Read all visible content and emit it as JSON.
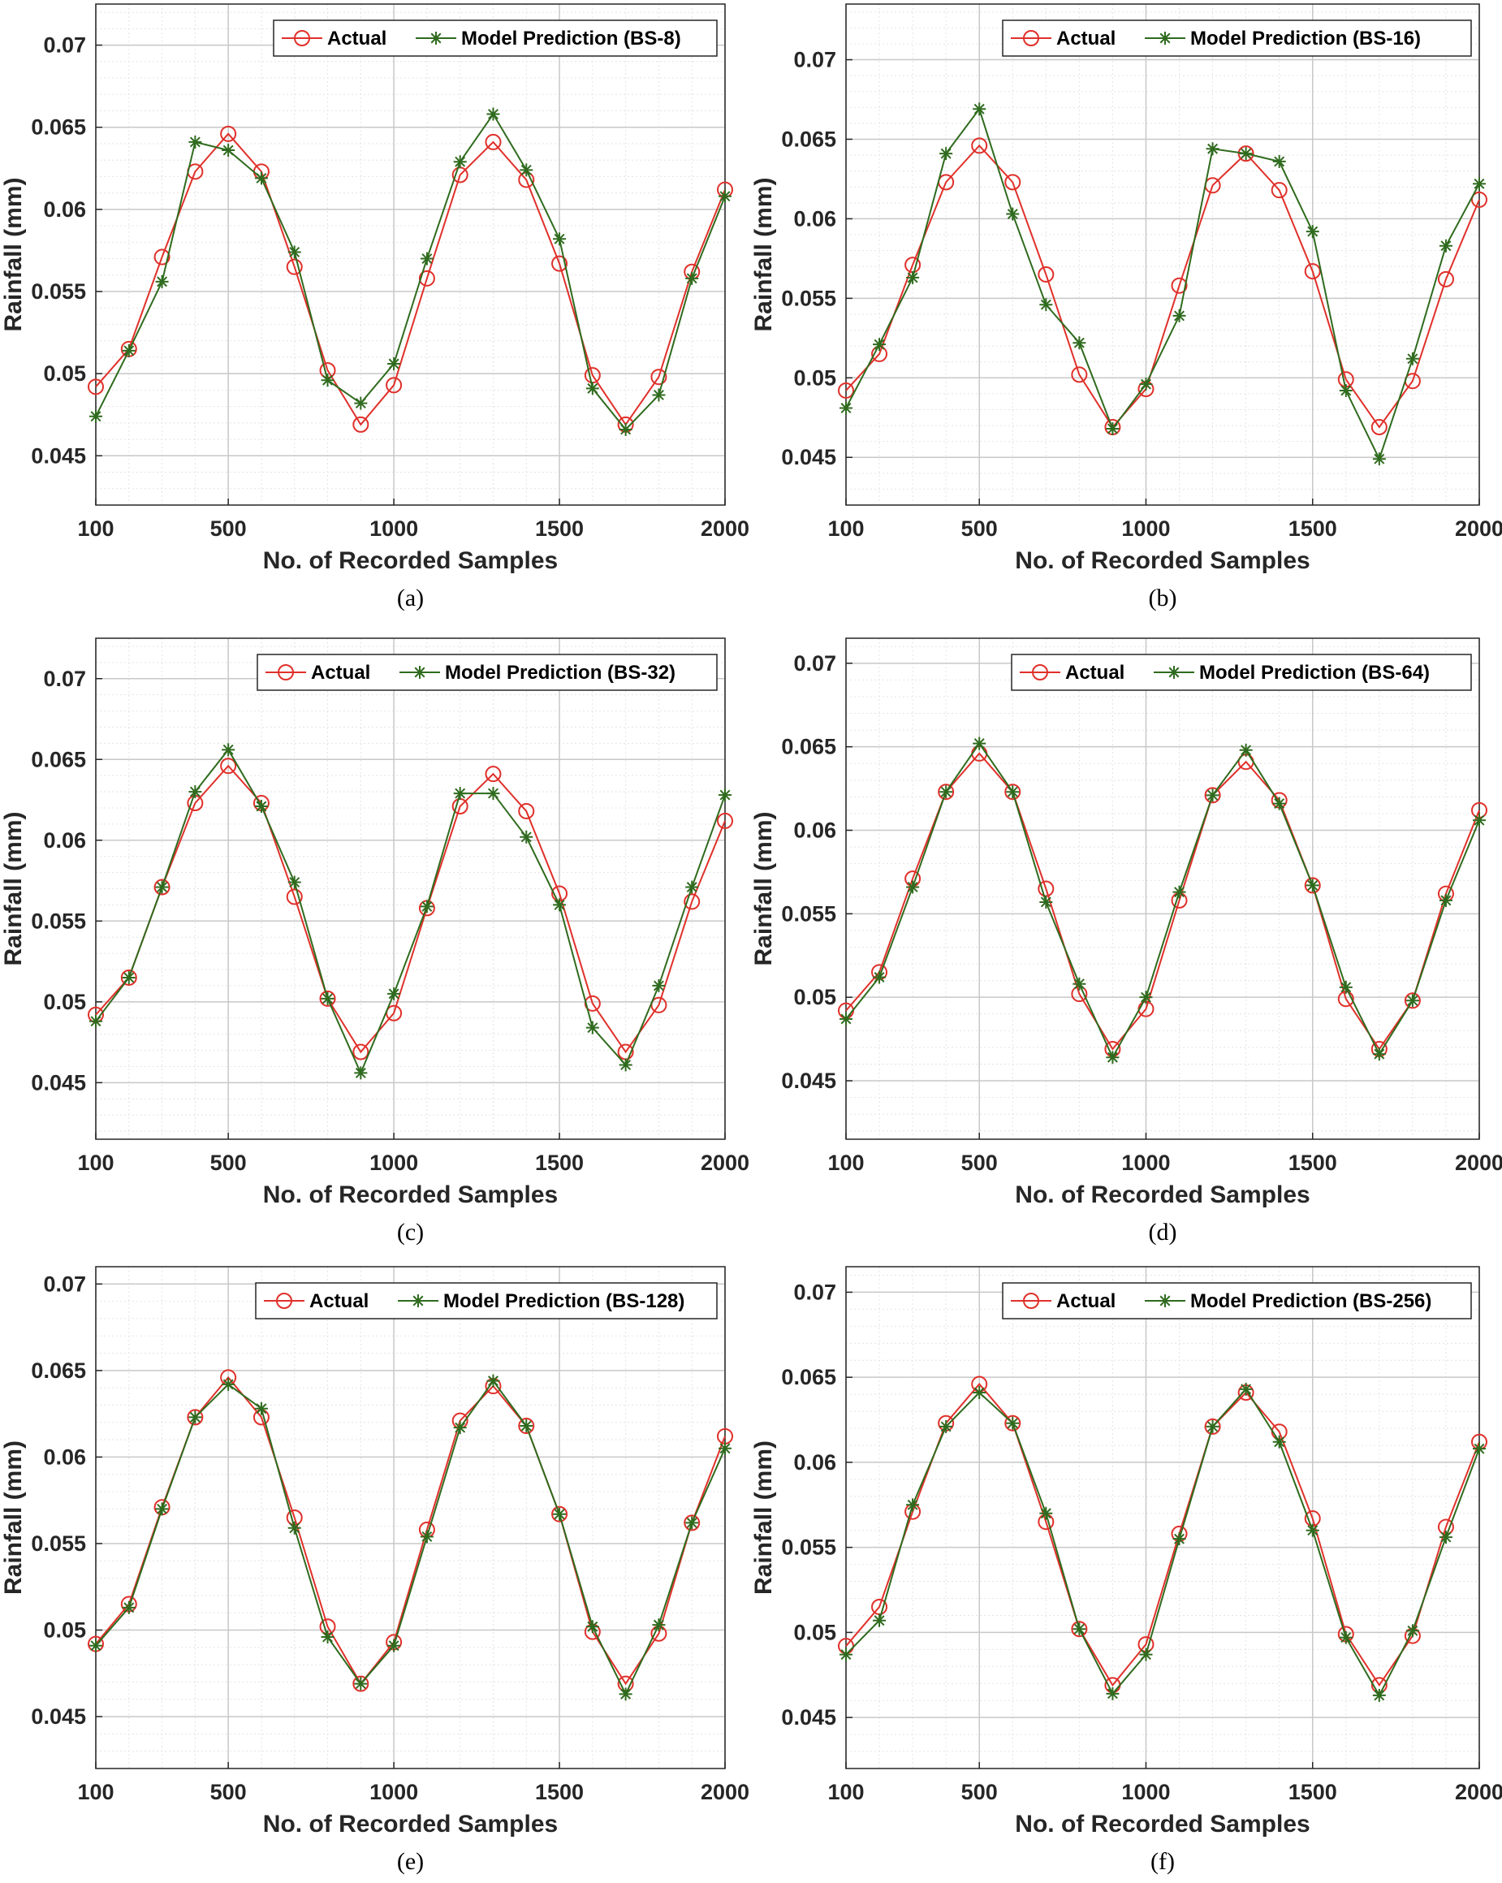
{
  "colors": {
    "actual": "#e0302a",
    "prediction": "#2f6b1e",
    "grid_major": "#c8c8c8",
    "grid_minor": "#e4e4e4",
    "axes": "#262626"
  },
  "chart_data": [
    {
      "type": "line",
      "caption": "(a)",
      "xlabel": "No. of Recorded Samples",
      "ylabel": "Rainfall (mm)",
      "xlim": [
        100,
        2000
      ],
      "ylim": [
        0.042,
        0.0725
      ],
      "xticks": [
        100,
        500,
        1000,
        1500,
        2000
      ],
      "xtick_labels": [
        "100",
        "500",
        "1000",
        "1500",
        "2000"
      ],
      "yticks": [
        0.045,
        0.05,
        0.055,
        0.06,
        0.065,
        0.07
      ],
      "ytick_labels": [
        "0.045",
        "0.05",
        "0.055",
        "0.06",
        "0.065",
        "0.07"
      ],
      "grid": true,
      "legend_position": "top-right",
      "x": [
        100,
        200,
        300,
        400,
        500,
        600,
        700,
        800,
        900,
        1000,
        1100,
        1200,
        1300,
        1400,
        1500,
        1600,
        1700,
        1800,
        1900,
        2000
      ],
      "series": [
        {
          "name": "Actual",
          "marker": "circle",
          "values": [
            0.0492,
            0.0515,
            0.0571,
            0.0623,
            0.0646,
            0.0623,
            0.0565,
            0.0502,
            0.0469,
            0.0493,
            0.0558,
            0.0621,
            0.0641,
            0.0618,
            0.0567,
            0.0499,
            0.0469,
            0.0498,
            0.0562,
            0.0612
          ]
        },
        {
          "name": "Model Prediction (BS-8)",
          "marker": "star",
          "values": [
            0.0474,
            0.0514,
            0.0556,
            0.0641,
            0.0636,
            0.0619,
            0.0574,
            0.0496,
            0.0482,
            0.0506,
            0.057,
            0.0629,
            0.0658,
            0.0624,
            0.0582,
            0.0491,
            0.0466,
            0.0487,
            0.0558,
            0.0608
          ]
        }
      ]
    },
    {
      "type": "line",
      "caption": "(b)",
      "xlabel": "No. of Recorded Samples",
      "ylabel": "Rainfall (mm)",
      "xlim": [
        100,
        2000
      ],
      "ylim": [
        0.042,
        0.0735
      ],
      "xticks": [
        100,
        500,
        1000,
        1500,
        2000
      ],
      "xtick_labels": [
        "100",
        "500",
        "1000",
        "1500",
        "2000"
      ],
      "yticks": [
        0.045,
        0.05,
        0.055,
        0.06,
        0.065,
        0.07
      ],
      "ytick_labels": [
        "0.045",
        "0.05",
        "0.055",
        "0.06",
        "0.065",
        "0.07"
      ],
      "grid": true,
      "legend_position": "top-right",
      "x": [
        100,
        200,
        300,
        400,
        500,
        600,
        700,
        800,
        900,
        1000,
        1100,
        1200,
        1300,
        1400,
        1500,
        1600,
        1700,
        1800,
        1900,
        2000
      ],
      "series": [
        {
          "name": "Actual",
          "marker": "circle",
          "values": [
            0.0492,
            0.0515,
            0.0571,
            0.0623,
            0.0646,
            0.0623,
            0.0565,
            0.0502,
            0.0469,
            0.0493,
            0.0558,
            0.0621,
            0.0641,
            0.0618,
            0.0567,
            0.0499,
            0.0469,
            0.0498,
            0.0562,
            0.0612
          ]
        },
        {
          "name": "Model Prediction (BS-16)",
          "marker": "star",
          "values": [
            0.0481,
            0.0521,
            0.0563,
            0.0641,
            0.0669,
            0.0603,
            0.0546,
            0.0522,
            0.0468,
            0.0496,
            0.0539,
            0.0644,
            0.0641,
            0.0636,
            0.0592,
            0.0492,
            0.0449,
            0.0512,
            0.0583,
            0.0622
          ]
        }
      ]
    },
    {
      "type": "line",
      "caption": "(c)",
      "xlabel": "No. of Recorded Samples",
      "ylabel": "Rainfall (mm)",
      "xlim": [
        100,
        2000
      ],
      "ylim": [
        0.0415,
        0.0725
      ],
      "xticks": [
        100,
        500,
        1000,
        1500,
        2000
      ],
      "xtick_labels": [
        "100",
        "500",
        "1000",
        "1500",
        "2000"
      ],
      "yticks": [
        0.045,
        0.05,
        0.055,
        0.06,
        0.065,
        0.07
      ],
      "ytick_labels": [
        "0.045",
        "0.05",
        "0.055",
        "0.06",
        "0.065",
        "0.07"
      ],
      "grid": true,
      "legend_position": "top-right",
      "x": [
        100,
        200,
        300,
        400,
        500,
        600,
        700,
        800,
        900,
        1000,
        1100,
        1200,
        1300,
        1400,
        1500,
        1600,
        1700,
        1800,
        1900,
        2000
      ],
      "series": [
        {
          "name": "Actual",
          "marker": "circle",
          "values": [
            0.0492,
            0.0515,
            0.0571,
            0.0623,
            0.0646,
            0.0623,
            0.0565,
            0.0502,
            0.0469,
            0.0493,
            0.0558,
            0.0621,
            0.0641,
            0.0618,
            0.0567,
            0.0499,
            0.0469,
            0.0498,
            0.0562,
            0.0612
          ]
        },
        {
          "name": "Model Prediction (BS-32)",
          "marker": "star",
          "values": [
            0.0488,
            0.0515,
            0.0571,
            0.063,
            0.0656,
            0.0621,
            0.0574,
            0.0502,
            0.0456,
            0.0505,
            0.0559,
            0.0629,
            0.0629,
            0.0602,
            0.056,
            0.0484,
            0.0461,
            0.051,
            0.0571,
            0.0628
          ]
        }
      ]
    },
    {
      "type": "line",
      "caption": "(d)",
      "xlabel": "No. of Recorded Samples",
      "ylabel": "Rainfall (mm)",
      "xlim": [
        100,
        2000
      ],
      "ylim": [
        0.0415,
        0.0715
      ],
      "xticks": [
        100,
        500,
        1000,
        1500,
        2000
      ],
      "xtick_labels": [
        "100",
        "500",
        "1000",
        "1500",
        "2000"
      ],
      "yticks": [
        0.045,
        0.05,
        0.055,
        0.06,
        0.065,
        0.07
      ],
      "ytick_labels": [
        "0.045",
        "0.05",
        "0.055",
        "0.06",
        "0.065",
        "0.07"
      ],
      "grid": true,
      "legend_position": "top-right",
      "x": [
        100,
        200,
        300,
        400,
        500,
        600,
        700,
        800,
        900,
        1000,
        1100,
        1200,
        1300,
        1400,
        1500,
        1600,
        1700,
        1800,
        1900,
        2000
      ],
      "series": [
        {
          "name": "Actual",
          "marker": "circle",
          "values": [
            0.0492,
            0.0515,
            0.0571,
            0.0623,
            0.0646,
            0.0623,
            0.0565,
            0.0502,
            0.0469,
            0.0493,
            0.0558,
            0.0621,
            0.0641,
            0.0618,
            0.0567,
            0.0499,
            0.0469,
            0.0498,
            0.0562,
            0.0612
          ]
        },
        {
          "name": "Model Prediction (BS-64)",
          "marker": "star",
          "values": [
            0.0487,
            0.0512,
            0.0566,
            0.0623,
            0.0652,
            0.0623,
            0.0557,
            0.0508,
            0.0464,
            0.05,
            0.0563,
            0.0621,
            0.0648,
            0.0616,
            0.0567,
            0.0506,
            0.0466,
            0.0498,
            0.0558,
            0.0606
          ]
        }
      ]
    },
    {
      "type": "line",
      "caption": "(e)",
      "xlabel": "No. of Recorded Samples",
      "ylabel": "Rainfall (mm)",
      "xlim": [
        100,
        2000
      ],
      "ylim": [
        0.042,
        0.071
      ],
      "xticks": [
        100,
        500,
        1000,
        1500,
        2000
      ],
      "xtick_labels": [
        "100",
        "500",
        "1000",
        "1500",
        "2000"
      ],
      "yticks": [
        0.045,
        0.05,
        0.055,
        0.06,
        0.065,
        0.07
      ],
      "ytick_labels": [
        "0.045",
        "0.05",
        "0.055",
        "0.06",
        "0.065",
        "0.07"
      ],
      "grid": true,
      "legend_position": "top-right",
      "x": [
        100,
        200,
        300,
        400,
        500,
        600,
        700,
        800,
        900,
        1000,
        1100,
        1200,
        1300,
        1400,
        1500,
        1600,
        1700,
        1800,
        1900,
        2000
      ],
      "series": [
        {
          "name": "Actual",
          "marker": "circle",
          "values": [
            0.0492,
            0.0515,
            0.0571,
            0.0623,
            0.0646,
            0.0623,
            0.0565,
            0.0502,
            0.0469,
            0.0493,
            0.0558,
            0.0621,
            0.0641,
            0.0618,
            0.0567,
            0.0499,
            0.0469,
            0.0498,
            0.0562,
            0.0612
          ]
        },
        {
          "name": "Model Prediction (BS-128)",
          "marker": "star",
          "values": [
            0.0491,
            0.0513,
            0.057,
            0.0623,
            0.0642,
            0.0628,
            0.0559,
            0.0496,
            0.0469,
            0.0491,
            0.0554,
            0.0617,
            0.0644,
            0.0618,
            0.0567,
            0.0502,
            0.0463,
            0.0503,
            0.0562,
            0.0605
          ]
        }
      ]
    },
    {
      "type": "line",
      "caption": "(f)",
      "xlabel": "No. of Recorded Samples",
      "ylabel": "Rainfall (mm)",
      "xlim": [
        100,
        2000
      ],
      "ylim": [
        0.042,
        0.0715
      ],
      "xticks": [
        100,
        500,
        1000,
        1500,
        2000
      ],
      "xtick_labels": [
        "100",
        "500",
        "1000",
        "1500",
        "2000"
      ],
      "yticks": [
        0.045,
        0.05,
        0.055,
        0.06,
        0.065,
        0.07
      ],
      "ytick_labels": [
        "0.045",
        "0.05",
        "0.055",
        "0.06",
        "0.065",
        "0.07"
      ],
      "grid": true,
      "legend_position": "top-right",
      "x": [
        100,
        200,
        300,
        400,
        500,
        600,
        700,
        800,
        900,
        1000,
        1100,
        1200,
        1300,
        1400,
        1500,
        1600,
        1700,
        1800,
        1900,
        2000
      ],
      "series": [
        {
          "name": "Actual",
          "marker": "circle",
          "values": [
            0.0492,
            0.0515,
            0.0571,
            0.0623,
            0.0646,
            0.0623,
            0.0565,
            0.0502,
            0.0469,
            0.0493,
            0.0558,
            0.0621,
            0.0641,
            0.0618,
            0.0567,
            0.0499,
            0.0469,
            0.0498,
            0.0562,
            0.0612
          ]
        },
        {
          "name": "Model Prediction (BS-256)",
          "marker": "star",
          "values": [
            0.0487,
            0.0507,
            0.0575,
            0.0621,
            0.0641,
            0.0623,
            0.057,
            0.0502,
            0.0464,
            0.0487,
            0.0555,
            0.0621,
            0.0643,
            0.0612,
            0.056,
            0.0497,
            0.0463,
            0.0501,
            0.0556,
            0.0608
          ]
        }
      ]
    }
  ]
}
